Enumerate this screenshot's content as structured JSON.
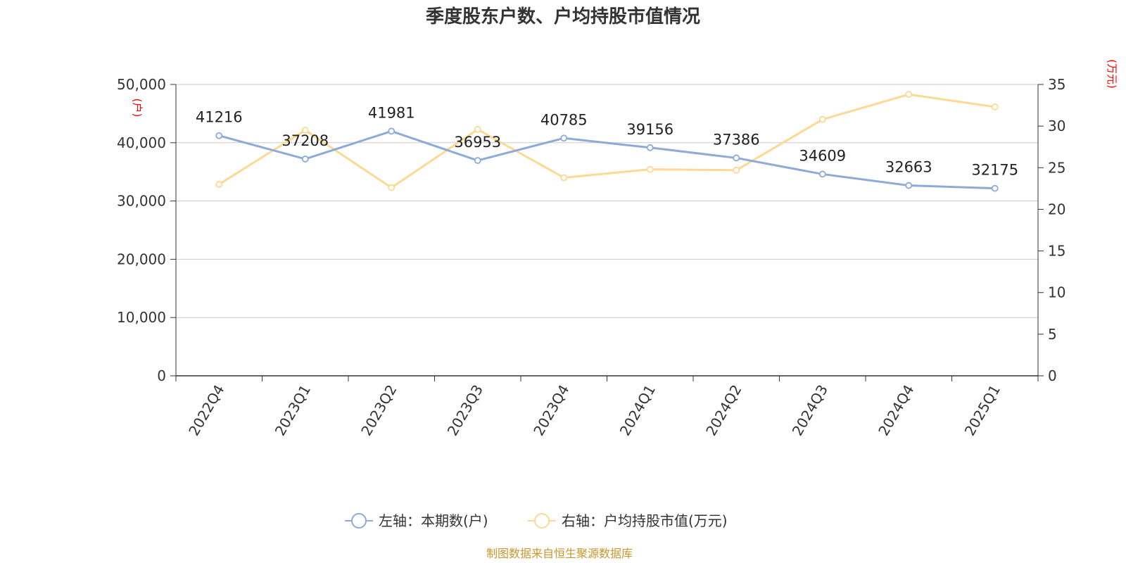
{
  "chart_data": {
    "type": "line",
    "title": "季度股东户数、户均持股市值情况",
    "categories": [
      "2022Q4",
      "2023Q1",
      "2023Q2",
      "2023Q3",
      "2023Q4",
      "2024Q1",
      "2024Q2",
      "2024Q3",
      "2024Q4",
      "2025Q1"
    ],
    "left_axis": {
      "unit": "(户)",
      "ylim": [
        0,
        50000
      ],
      "ticks": [
        "0",
        "10,000",
        "20,000",
        "30,000",
        "40,000",
        "50,000"
      ]
    },
    "right_axis": {
      "unit": "(万元)",
      "ylim": [
        0,
        35
      ],
      "ticks": [
        "0",
        "5",
        "10",
        "15",
        "20",
        "25",
        "30",
        "35"
      ]
    },
    "series": [
      {
        "name": "左轴：本期数(户)",
        "axis": "left",
        "color": "#8eaadb",
        "values": [
          41216,
          37208,
          41981,
          36953,
          40785,
          39156,
          37386,
          34609,
          32663,
          32175
        ],
        "labels": [
          "41216",
          "37208",
          "41981",
          "36953",
          "40785",
          "39156",
          "37386",
          "34609",
          "32663",
          "32175"
        ]
      },
      {
        "name": "右轴：户均持股市值(万元)",
        "axis": "right",
        "color": "#fcd994",
        "values": [
          23.0,
          29.5,
          22.6,
          29.6,
          23.8,
          24.8,
          24.7,
          30.8,
          33.8,
          32.3
        ]
      }
    ],
    "grid": true,
    "legend_position": "bottom-center"
  },
  "source": "制图数据来自恒生聚源数据库"
}
